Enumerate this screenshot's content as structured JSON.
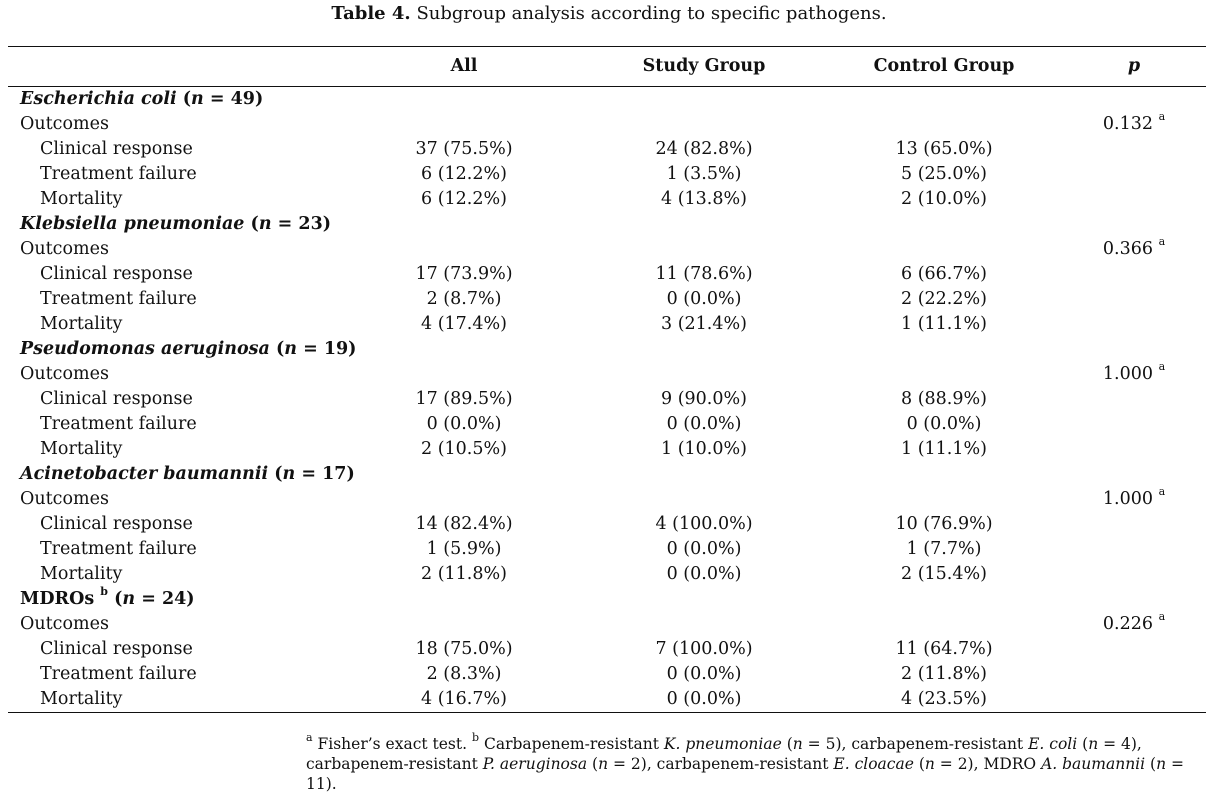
{
  "caption": {
    "label": "Table 4.",
    "text": "Subgroup analysis according to specific pathogens."
  },
  "headers": [
    "",
    "All",
    "Study Group",
    "Control Group",
    "p"
  ],
  "groups": [
    {
      "name": "Escherichia coli",
      "suffix": "",
      "n_label": "n",
      "n": "= 49)",
      "outcomes_label": "Outcomes",
      "p": "0.132",
      "p_sup": "a",
      "rows": [
        {
          "label": "Clinical response",
          "all": "37 (75.5%)",
          "study": "24 (82.8%)",
          "control": "13 (65.0%)"
        },
        {
          "label": "Treatment failure",
          "all": "6 (12.2%)",
          "study": "1 (3.5%)",
          "control": "5 (25.0%)"
        },
        {
          "label": "Mortality",
          "all": "6 (12.2%)",
          "study": "4 (13.8%)",
          "control": "2 (10.0%)"
        }
      ]
    },
    {
      "name": "Klebsiella pneumoniae",
      "suffix": "",
      "n_label": "n",
      "n": "= 23)",
      "outcomes_label": "Outcomes",
      "p": "0.366",
      "p_sup": "a",
      "rows": [
        {
          "label": "Clinical response",
          "all": "17 (73.9%)",
          "study": "11 (78.6%)",
          "control": "6 (66.7%)"
        },
        {
          "label": "Treatment failure",
          "all": "2 (8.7%)",
          "study": "0 (0.0%)",
          "control": "2 (22.2%)"
        },
        {
          "label": "Mortality",
          "all": "4 (17.4%)",
          "study": "3 (21.4%)",
          "control": "1 (11.1%)"
        }
      ]
    },
    {
      "name": "Pseudomonas aeruginosa",
      "suffix": "",
      "n_label": "n",
      "n": "= 19)",
      "outcomes_label": "Outcomes",
      "p": "1.000",
      "p_sup": "a",
      "rows": [
        {
          "label": "Clinical response",
          "all": "17 (89.5%)",
          "study": "9 (90.0%)",
          "control": "8 (88.9%)"
        },
        {
          "label": "Treatment failure",
          "all": "0 (0.0%)",
          "study": "0 (0.0%)",
          "control": "0 (0.0%)"
        },
        {
          "label": "Mortality",
          "all": "2 (10.5%)",
          "study": "1 (10.0%)",
          "control": "1 (11.1%)"
        }
      ]
    },
    {
      "name": "Acinetobacter baumannii",
      "suffix": "",
      "n_label": "n",
      "n": "= 17)",
      "outcomes_label": "Outcomes",
      "p": "1.000",
      "p_sup": "a",
      "rows": [
        {
          "label": "Clinical response",
          "all": "14 (82.4%)",
          "study": "4 (100.0%)",
          "control": "10 (76.9%)"
        },
        {
          "label": "Treatment failure",
          "all": "1 (5.9%)",
          "study": "0 (0.0%)",
          "control": "1 (7.7%)"
        },
        {
          "label": "Mortality",
          "all": "2 (11.8%)",
          "study": "0 (0.0%)",
          "control": "2 (15.4%)"
        }
      ]
    },
    {
      "name": "MDROs",
      "name_sup": "b",
      "plain": true,
      "n_label": "n",
      "n": "= 24)",
      "outcomes_label": "Outcomes",
      "p": "0.226",
      "p_sup": "a",
      "rows": [
        {
          "label": "Clinical response",
          "all": "18 (75.0%)",
          "study": "7 (100.0%)",
          "control": "11 (64.7%)"
        },
        {
          "label": "Treatment failure",
          "all": "2 (8.3%)",
          "study": "0 (0.0%)",
          "control": "2 (11.8%)"
        },
        {
          "label": "Mortality",
          "all": "4 (16.7%)",
          "study": "0 (0.0%)",
          "control": "4 (23.5%)"
        }
      ]
    }
  ],
  "footnote": {
    "a_sup": "a",
    "a_text": "Fisher’s exact test.",
    "b_sup": "b",
    "b_parts": [
      {
        "t": "Carbapenem-resistant ",
        "i": false
      },
      {
        "t": "K. pneumoniae",
        "i": true
      },
      {
        "t": " (",
        "i": false
      },
      {
        "t": "n",
        "i": true
      },
      {
        "t": " = 5), carbapenem-resistant ",
        "i": false
      },
      {
        "t": "E. coli",
        "i": true
      },
      {
        "t": " (",
        "i": false
      },
      {
        "t": "n",
        "i": true
      },
      {
        "t": " = 4), carbapenem-resistant ",
        "i": false
      },
      {
        "t": "P. aeruginosa",
        "i": true
      },
      {
        "t": " (",
        "i": false
      },
      {
        "t": "n",
        "i": true
      },
      {
        "t": " = 2), carbapenem-resistant ",
        "i": false
      },
      {
        "t": "E. cloacae",
        "i": true
      },
      {
        "t": " (",
        "i": false
      },
      {
        "t": "n",
        "i": true
      },
      {
        "t": " = 2), MDRO ",
        "i": false
      },
      {
        "t": "A. baumannii",
        "i": true
      },
      {
        "t": " (",
        "i": false
      },
      {
        "t": "n",
        "i": true
      },
      {
        "t": " = 11).",
        "i": false
      }
    ]
  }
}
